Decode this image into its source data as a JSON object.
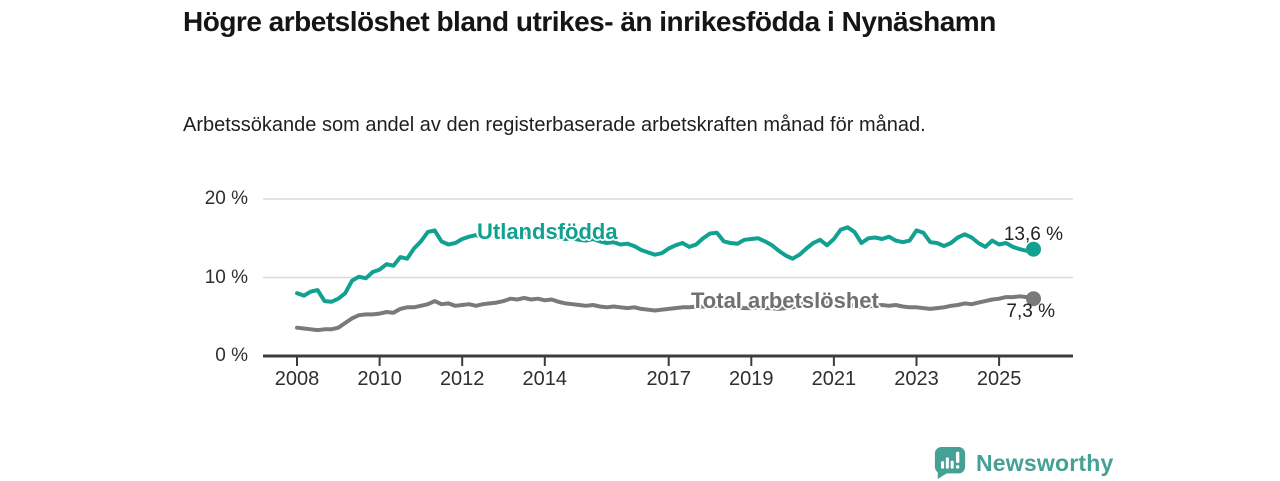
{
  "header": {
    "title": "Högre arbetslöshet bland utrikes- än inrikesfödda i Nynäshamn",
    "subtitle": "Arbetssökande som andel av den registerbaserade arbetskraften månad för månad."
  },
  "chart_data": {
    "type": "line",
    "title": "Högre arbetslöshet bland utrikes- än inrikesfödda i Nynäshamn",
    "xlabel": "",
    "ylabel": "",
    "grid": true,
    "ylim": [
      0,
      20
    ],
    "x_start": 2008.0,
    "x_step_months": 2,
    "x_end_approx": 2025.83,
    "x_ticks": [
      2008,
      2010,
      2012,
      2014,
      2017,
      2019,
      2021,
      2023,
      2025
    ],
    "y_ticks": [
      {
        "value": 0,
        "label": "0 %"
      },
      {
        "value": 10,
        "label": "10 %"
      },
      {
        "value": 20,
        "label": "20 %"
      }
    ],
    "series": [
      {
        "name": "Utlandsfödda",
        "color": "#12A191",
        "end_label": "13,6 %",
        "last_value": 13.6,
        "values": [
          8.0,
          7.7,
          8.2,
          8.4,
          7.0,
          6.9,
          7.3,
          8.0,
          9.6,
          10.1,
          9.9,
          10.7,
          11.0,
          11.7,
          11.5,
          12.6,
          12.4,
          13.7,
          14.6,
          15.8,
          16.0,
          14.6,
          14.2,
          14.4,
          14.9,
          15.2,
          15.4,
          15.1,
          15.3,
          15.5,
          15.6,
          15.8,
          15.5,
          15.7,
          15.4,
          15.2,
          15.3,
          15.5,
          15.1,
          14.9,
          15.0,
          14.8,
          14.7,
          14.9,
          14.6,
          14.4,
          14.5,
          14.2,
          14.3,
          14.0,
          13.5,
          13.2,
          12.9,
          13.1,
          13.7,
          14.1,
          14.4,
          13.9,
          14.2,
          15.0,
          15.6,
          15.7,
          14.6,
          14.4,
          14.3,
          14.8,
          14.9,
          15.0,
          14.6,
          14.1,
          13.4,
          12.8,
          12.4,
          12.9,
          13.7,
          14.4,
          14.8,
          14.1,
          14.9,
          16.1,
          16.4,
          15.8,
          14.4,
          15.0,
          15.1,
          14.9,
          15.2,
          14.7,
          14.5,
          14.7,
          16.0,
          15.7,
          14.5,
          14.4,
          14.0,
          14.4,
          15.1,
          15.5,
          15.1,
          14.4,
          13.9,
          14.7,
          14.2,
          14.4,
          13.9,
          13.6,
          13.4,
          13.6
        ]
      },
      {
        "name": "Total arbetslöshet",
        "color": "#7A7A7A",
        "end_label": "7,3 %",
        "last_value": 7.3,
        "values": [
          3.6,
          3.5,
          3.4,
          3.3,
          3.4,
          3.4,
          3.6,
          4.2,
          4.8,
          5.2,
          5.3,
          5.3,
          5.4,
          5.6,
          5.5,
          6.0,
          6.2,
          6.2,
          6.4,
          6.6,
          7.0,
          6.6,
          6.7,
          6.4,
          6.5,
          6.6,
          6.4,
          6.6,
          6.7,
          6.8,
          7.0,
          7.3,
          7.2,
          7.4,
          7.2,
          7.3,
          7.1,
          7.2,
          6.9,
          6.7,
          6.6,
          6.5,
          6.4,
          6.5,
          6.3,
          6.2,
          6.3,
          6.2,
          6.1,
          6.2,
          6.0,
          5.9,
          5.8,
          5.9,
          6.0,
          6.1,
          6.2,
          6.2,
          6.3,
          6.3,
          6.3,
          6.4,
          6.3,
          6.2,
          6.2,
          6.1,
          6.1,
          6.2,
          6.1,
          6.1,
          6.0,
          6.1,
          6.2,
          6.5,
          6.8,
          7.0,
          6.9,
          6.8,
          6.8,
          6.7,
          6.6,
          6.4,
          6.3,
          6.3,
          6.4,
          6.5,
          6.4,
          6.5,
          6.3,
          6.2,
          6.2,
          6.1,
          6.0,
          6.1,
          6.2,
          6.4,
          6.5,
          6.7,
          6.6,
          6.8,
          7.0,
          7.2,
          7.3,
          7.5,
          7.5,
          7.6,
          7.5,
          7.3
        ]
      }
    ],
    "colors": {
      "grid": "#DADADA",
      "axis": "#3C3C3C",
      "tick_text": "#2F2F2F",
      "value_label_text": "#222222"
    }
  },
  "footer": {
    "brand": "Newsworthy",
    "brand_color": "#45A095",
    "logo_icon": "bar-chart-speech-bubble"
  }
}
